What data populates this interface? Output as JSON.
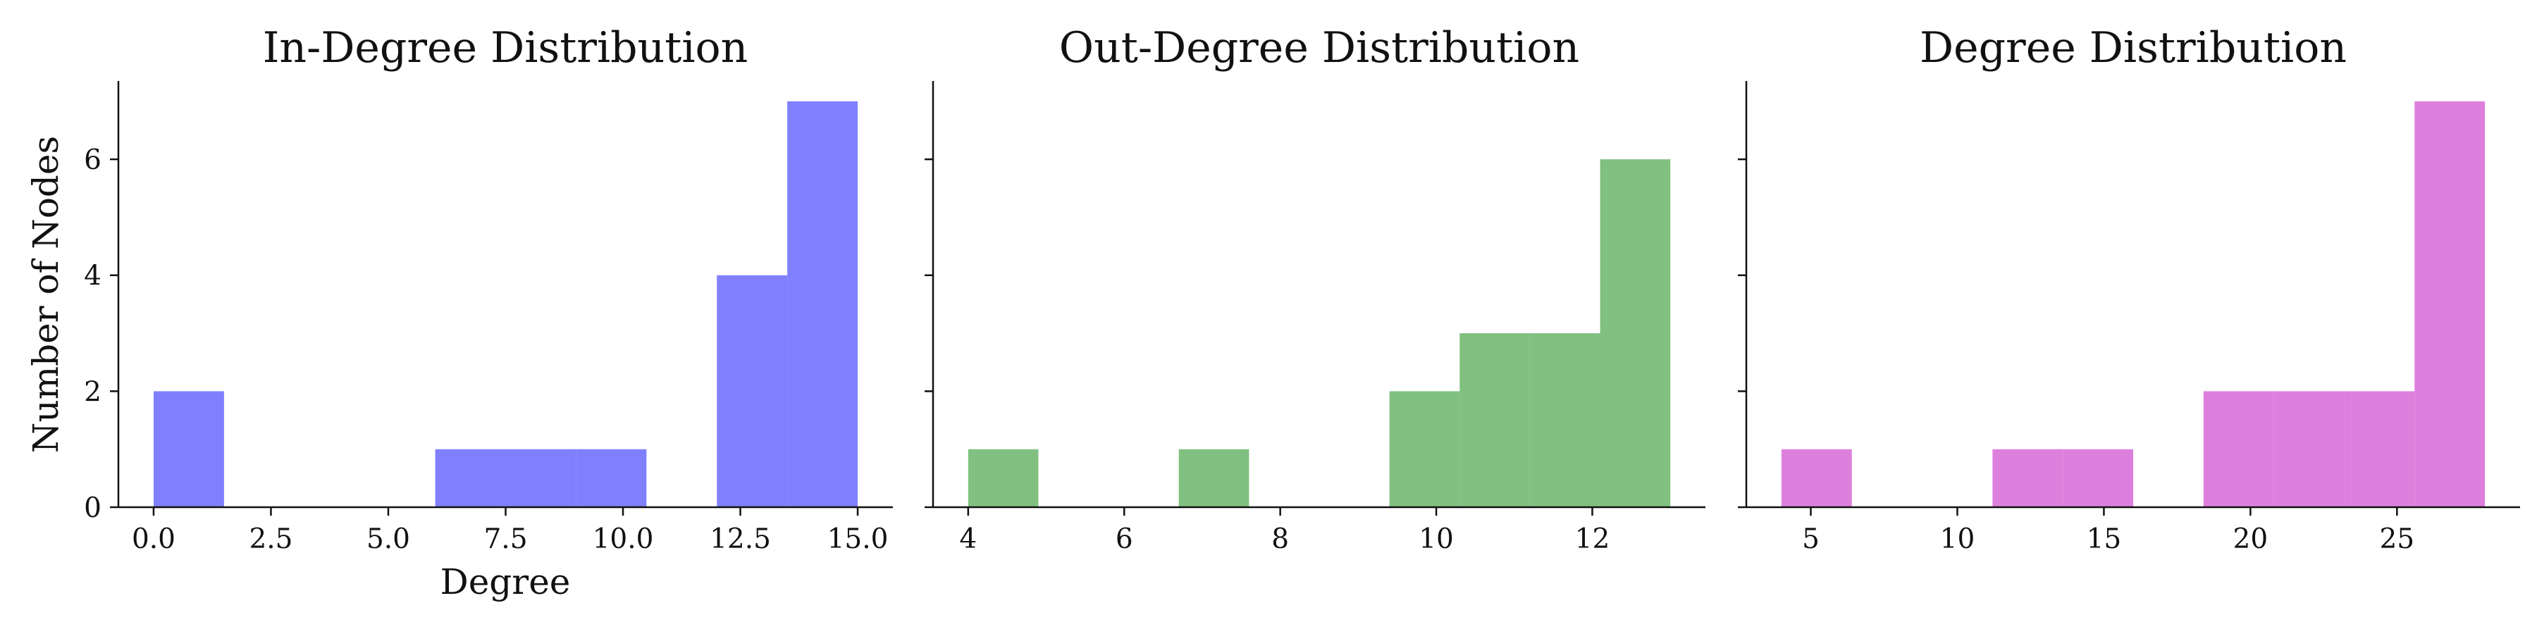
{
  "chart_data": [
    {
      "type": "bar",
      "title": "In-Degree Distribution",
      "xlabel": "Degree",
      "ylabel": "Number of Nodes",
      "color": "#8080ff",
      "bin_edges": [
        0,
        1.5,
        3,
        4.5,
        6,
        7.5,
        9,
        10.5,
        12,
        13.5,
        15
      ],
      "values": [
        2,
        0,
        0,
        0,
        1,
        1,
        1,
        0,
        4,
        7
      ],
      "xlim": [
        -0.75,
        15.75
      ],
      "ylim": [
        0,
        7.35
      ],
      "xticks": [
        0,
        2.5,
        5,
        7.5,
        10,
        12.5,
        15
      ],
      "xtick_labels": [
        "0.0",
        "2.5",
        "5.0",
        "7.5",
        "10.0",
        "12.5",
        "15.0"
      ],
      "yticks": [
        0,
        2,
        4,
        6
      ],
      "ytick_labels": [
        "0",
        "2",
        "4",
        "6"
      ]
    },
    {
      "type": "bar",
      "title": "Out-Degree Distribution",
      "xlabel": "",
      "ylabel": "",
      "color": "#80c080",
      "bin_edges": [
        4,
        4.9,
        5.8,
        6.7,
        7.6,
        8.5,
        9.4,
        10.3,
        11.2,
        12.1,
        13
      ],
      "values": [
        1,
        0,
        0,
        1,
        0,
        0,
        2,
        3,
        3,
        6
      ],
      "xlim": [
        3.55,
        13.45
      ],
      "ylim": [
        0,
        7.35
      ],
      "xticks": [
        4,
        6,
        8,
        10,
        12
      ],
      "xtick_labels": [
        "4",
        "6",
        "8",
        "10",
        "12"
      ],
      "yticks": [
        0,
        2,
        4,
        6
      ],
      "ytick_labels": [
        "",
        "",
        "",
        ""
      ]
    },
    {
      "type": "bar",
      "title": "Degree Distribution",
      "xlabel": "",
      "ylabel": "",
      "color": "#dd80dd",
      "bin_edges": [
        4,
        6.4,
        8.8,
        11.2,
        13.6,
        16,
        18.4,
        20.8,
        23.2,
        25.6,
        28
      ],
      "values": [
        1,
        0,
        0,
        1,
        1,
        0,
        2,
        2,
        2,
        7
      ],
      "xlim": [
        2.8,
        29.2
      ],
      "ylim": [
        0,
        7.35
      ],
      "xticks": [
        5,
        10,
        15,
        20,
        25
      ],
      "xtick_labels": [
        "5",
        "10",
        "15",
        "20",
        "25"
      ],
      "yticks": [
        0,
        2,
        4,
        6
      ],
      "ytick_labels": [
        "",
        "",
        "",
        ""
      ]
    }
  ]
}
